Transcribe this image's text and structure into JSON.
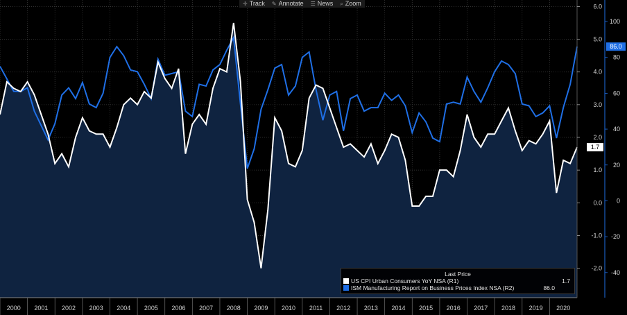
{
  "toolbar": {
    "items": [
      {
        "label": "Track",
        "icon": "crosshair-icon"
      },
      {
        "label": "Annotate",
        "icon": "pencil-icon"
      },
      {
        "label": "News",
        "icon": "news-icon"
      },
      {
        "label": "Zoom",
        "icon": "magnifier-icon"
      }
    ]
  },
  "legend": {
    "title": "Last Price",
    "series": [
      {
        "name": "US CPI Urban Consumers YoY NSA (R1)",
        "value": "1.7",
        "color": "#ffffff"
      },
      {
        "name": "ISM Manufacturing Report on Business Prices Index NSA (R2)",
        "value": "86.0",
        "color": "#1f6fe6"
      }
    ]
  },
  "chart_data": {
    "type": "line",
    "x_ticks": [
      "2000",
      "2001",
      "2002",
      "2003",
      "2004",
      "2005",
      "2006",
      "2007",
      "2008",
      "2009",
      "2010",
      "2011",
      "2012",
      "2013",
      "2014",
      "2015",
      "2016",
      "2017",
      "2018",
      "2019",
      "2020"
    ],
    "x_range": [
      2000.0,
      2021.0
    ],
    "axes": {
      "R1": {
        "ticks": [
          "6.0",
          "5.0",
          "4.0",
          "3.0",
          "2.0",
          "1.0",
          "0.0",
          "-1.0",
          "-2.0"
        ],
        "range": [
          -2.9,
          6.2
        ]
      },
      "R2": {
        "ticks": [
          "100",
          "80",
          "60",
          "40",
          "20",
          "0",
          "-20",
          "-40"
        ],
        "range": [
          -54,
          112
        ]
      }
    },
    "last_price_labels": {
      "R1": "1.7",
      "R2": "86.0"
    },
    "background": "#000000",
    "area_fill": "#0f2340",
    "grid": true,
    "legend_position": "bottom-right",
    "series": [
      {
        "name": "US CPI Urban Consumers YoY NSA (R1)",
        "axis": "R1",
        "color": "#ffffff",
        "points": [
          [
            2000.0,
            2.7
          ],
          [
            2000.25,
            3.7
          ],
          [
            2000.5,
            3.5
          ],
          [
            2000.75,
            3.4
          ],
          [
            2001.0,
            3.7
          ],
          [
            2001.25,
            3.3
          ],
          [
            2001.5,
            2.7
          ],
          [
            2001.75,
            2.1
          ],
          [
            2002.0,
            1.2
          ],
          [
            2002.25,
            1.5
          ],
          [
            2002.5,
            1.1
          ],
          [
            2002.75,
            2.0
          ],
          [
            2003.0,
            2.6
          ],
          [
            2003.25,
            2.2
          ],
          [
            2003.5,
            2.1
          ],
          [
            2003.75,
            2.1
          ],
          [
            2004.0,
            1.7
          ],
          [
            2004.25,
            2.3
          ],
          [
            2004.5,
            3.0
          ],
          [
            2004.75,
            3.2
          ],
          [
            2005.0,
            3.0
          ],
          [
            2005.25,
            3.4
          ],
          [
            2005.5,
            3.2
          ],
          [
            2005.75,
            4.3
          ],
          [
            2006.0,
            3.8
          ],
          [
            2006.25,
            3.5
          ],
          [
            2006.5,
            4.1
          ],
          [
            2006.75,
            1.5
          ],
          [
            2007.0,
            2.4
          ],
          [
            2007.25,
            2.7
          ],
          [
            2007.5,
            2.4
          ],
          [
            2007.75,
            3.5
          ],
          [
            2008.0,
            4.1
          ],
          [
            2008.25,
            4.0
          ],
          [
            2008.5,
            5.5
          ],
          [
            2008.75,
            3.7
          ],
          [
            2009.0,
            0.1
          ],
          [
            2009.25,
            -0.6
          ],
          [
            2009.5,
            -2.0
          ],
          [
            2009.75,
            -0.2
          ],
          [
            2010.0,
            2.6
          ],
          [
            2010.25,
            2.2
          ],
          [
            2010.5,
            1.2
          ],
          [
            2010.75,
            1.1
          ],
          [
            2011.0,
            1.6
          ],
          [
            2011.25,
            3.2
          ],
          [
            2011.5,
            3.6
          ],
          [
            2011.75,
            3.5
          ],
          [
            2012.0,
            2.9
          ],
          [
            2012.25,
            2.3
          ],
          [
            2012.5,
            1.7
          ],
          [
            2012.75,
            1.8
          ],
          [
            2013.0,
            1.6
          ],
          [
            2013.25,
            1.4
          ],
          [
            2013.5,
            1.8
          ],
          [
            2013.75,
            1.2
          ],
          [
            2014.0,
            1.6
          ],
          [
            2014.25,
            2.1
          ],
          [
            2014.5,
            2.0
          ],
          [
            2014.75,
            1.3
          ],
          [
            2015.0,
            -0.1
          ],
          [
            2015.25,
            -0.1
          ],
          [
            2015.5,
            0.2
          ],
          [
            2015.75,
            0.2
          ],
          [
            2016.0,
            1.0
          ],
          [
            2016.25,
            1.0
          ],
          [
            2016.5,
            0.8
          ],
          [
            2016.75,
            1.6
          ],
          [
            2017.0,
            2.7
          ],
          [
            2017.25,
            2.0
          ],
          [
            2017.5,
            1.7
          ],
          [
            2017.75,
            2.1
          ],
          [
            2018.0,
            2.1
          ],
          [
            2018.25,
            2.5
          ],
          [
            2018.5,
            2.9
          ],
          [
            2018.75,
            2.2
          ],
          [
            2019.0,
            1.6
          ],
          [
            2019.25,
            1.9
          ],
          [
            2019.5,
            1.8
          ],
          [
            2019.75,
            2.1
          ],
          [
            2020.0,
            2.5
          ],
          [
            2020.25,
            0.3
          ],
          [
            2020.5,
            1.3
          ],
          [
            2020.75,
            1.2
          ],
          [
            2021.0,
            1.7
          ]
        ]
      },
      {
        "name": "ISM Manufacturing Report on Business Prices Index NSA (R2)",
        "axis": "R2",
        "color": "#1f6fe6",
        "points": [
          [
            2000.0,
            75.0
          ],
          [
            2000.25,
            68.0
          ],
          [
            2000.5,
            61.0
          ],
          [
            2000.75,
            61.0
          ],
          [
            2001.0,
            63.0
          ],
          [
            2001.25,
            50.0
          ],
          [
            2001.5,
            42.0
          ],
          [
            2001.75,
            34.0
          ],
          [
            2002.0,
            43.0
          ],
          [
            2002.25,
            59.0
          ],
          [
            2002.5,
            63.0
          ],
          [
            2002.75,
            57.0
          ],
          [
            2003.0,
            66.0
          ],
          [
            2003.25,
            54.0
          ],
          [
            2003.5,
            52.0
          ],
          [
            2003.75,
            60.0
          ],
          [
            2004.0,
            80.0
          ],
          [
            2004.25,
            86.0
          ],
          [
            2004.5,
            81.0
          ],
          [
            2004.75,
            73.0
          ],
          [
            2005.0,
            72.0
          ],
          [
            2005.25,
            65.0
          ],
          [
            2005.5,
            57.0
          ],
          [
            2005.75,
            79.0
          ],
          [
            2006.0,
            70.0
          ],
          [
            2006.25,
            71.0
          ],
          [
            2006.5,
            72.0
          ],
          [
            2006.75,
            50.0
          ],
          [
            2007.0,
            47.0
          ],
          [
            2007.25,
            65.0
          ],
          [
            2007.5,
            64.0
          ],
          [
            2007.75,
            73.0
          ],
          [
            2008.0,
            76.0
          ],
          [
            2008.25,
            84.0
          ],
          [
            2008.5,
            91.0
          ],
          [
            2008.75,
            54.0
          ],
          [
            2009.0,
            18.0
          ],
          [
            2009.25,
            29.0
          ],
          [
            2009.5,
            51.0
          ],
          [
            2009.75,
            62.0
          ],
          [
            2010.0,
            74.0
          ],
          [
            2010.25,
            76.0
          ],
          [
            2010.5,
            59.0
          ],
          [
            2010.75,
            64.0
          ],
          [
            2011.0,
            80.0
          ],
          [
            2011.25,
            83.0
          ],
          [
            2011.5,
            62.0
          ],
          [
            2011.75,
            45.0
          ],
          [
            2012.0,
            59.0
          ],
          [
            2012.25,
            61.0
          ],
          [
            2012.5,
            39.0
          ],
          [
            2012.75,
            57.0
          ],
          [
            2013.0,
            59.0
          ],
          [
            2013.25,
            50.0
          ],
          [
            2013.5,
            52.0
          ],
          [
            2013.75,
            52.0
          ],
          [
            2014.0,
            60.0
          ],
          [
            2014.25,
            56.0
          ],
          [
            2014.5,
            59.0
          ],
          [
            2014.75,
            53.0
          ],
          [
            2015.0,
            38.0
          ],
          [
            2015.25,
            49.0
          ],
          [
            2015.5,
            44.0
          ],
          [
            2015.75,
            35.0
          ],
          [
            2016.0,
            33.0
          ],
          [
            2016.25,
            54.0
          ],
          [
            2016.5,
            55.0
          ],
          [
            2016.75,
            54.0
          ],
          [
            2017.0,
            69.0
          ],
          [
            2017.25,
            61.0
          ],
          [
            2017.5,
            55.0
          ],
          [
            2017.75,
            63.0
          ],
          [
            2018.0,
            72.0
          ],
          [
            2018.25,
            78.0
          ],
          [
            2018.5,
            76.0
          ],
          [
            2018.75,
            71.0
          ],
          [
            2019.0,
            54.0
          ],
          [
            2019.25,
            53.0
          ],
          [
            2019.5,
            47.0
          ],
          [
            2019.75,
            49.0
          ],
          [
            2020.0,
            53.0
          ],
          [
            2020.25,
            35.0
          ],
          [
            2020.5,
            52.0
          ],
          [
            2020.75,
            65.0
          ],
          [
            2021.0,
            86.0
          ]
        ]
      }
    ]
  }
}
